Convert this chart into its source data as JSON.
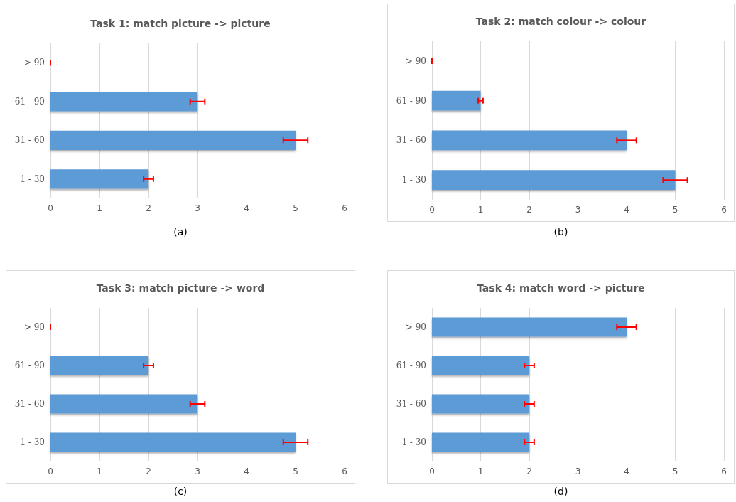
{
  "chart_data": [
    {
      "type": "bar",
      "orientation": "horizontal",
      "title": "Task 1: match picture -> picture",
      "categories": [
        "> 90",
        "61 - 90",
        "31 - 60",
        "1 - 30"
      ],
      "values": [
        0,
        3,
        5,
        2
      ],
      "errors": [
        0,
        0.15,
        0.25,
        0.1
      ],
      "color": "#5b9bd5",
      "xlim": [
        0,
        6
      ],
      "xticks": [
        0,
        1,
        2,
        3,
        4,
        5,
        6
      ],
      "grid": "x",
      "annotations": [
        "(a)"
      ]
    },
    {
      "type": "bar",
      "orientation": "horizontal",
      "title": "Task 2: match colour -> colour",
      "categories": [
        "> 90",
        "61 - 90",
        "31 - 60",
        "1 - 30"
      ],
      "values": [
        0,
        1,
        4,
        5
      ],
      "errors": [
        0,
        0.05,
        0.2,
        0.25
      ],
      "color": "#5b9bd5",
      "xlim": [
        0,
        6
      ],
      "xticks": [
        0,
        1,
        2,
        3,
        4,
        5,
        6
      ],
      "grid": "x",
      "annotations": [
        "(b)"
      ]
    },
    {
      "type": "bar",
      "orientation": "horizontal",
      "title": "Task 3: match picture -> word",
      "categories": [
        "> 90",
        "61 - 90",
        "31 - 60",
        "1 - 30"
      ],
      "values": [
        0,
        2,
        3,
        5
      ],
      "errors": [
        0,
        0.1,
        0.15,
        0.25
      ],
      "color": "#5b9bd5",
      "xlim": [
        0,
        6
      ],
      "xticks": [
        0,
        1,
        2,
        3,
        4,
        5,
        6
      ],
      "grid": "x",
      "annotations": [
        "(c)"
      ]
    },
    {
      "type": "bar",
      "orientation": "horizontal",
      "title": "Task 4: match word -> picture",
      "categories": [
        "> 90",
        "61 - 90",
        "31 - 60",
        "1 - 30"
      ],
      "values": [
        4,
        2,
        2,
        2
      ],
      "errors": [
        0.2,
        0.1,
        0.1,
        0.1
      ],
      "color": "#5b9bd5",
      "xlim": [
        0,
        6
      ],
      "xticks": [
        0,
        1,
        2,
        3,
        4,
        5,
        6
      ],
      "grid": "x",
      "annotations": [
        "(d)"
      ]
    }
  ]
}
